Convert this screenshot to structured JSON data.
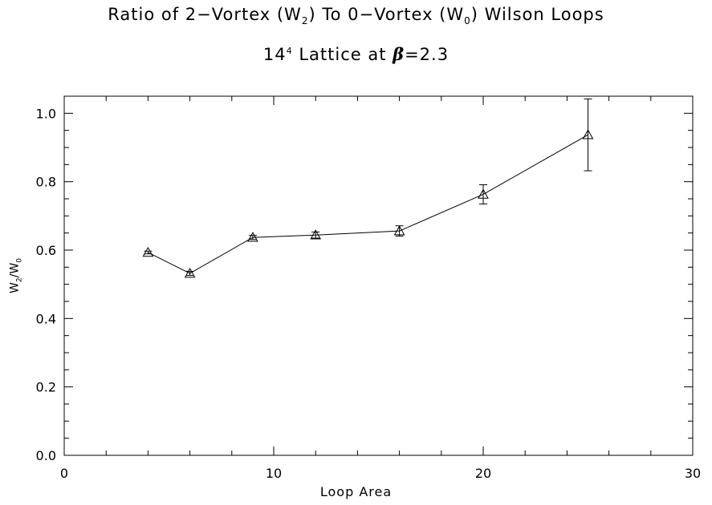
{
  "title": {
    "line1": {
      "prefix": "Ratio of 2−Vortex (W",
      "sub1": "2",
      "middle": ") To 0−Vortex (W",
      "sub2": "0",
      "suffix": ") Wilson Loops"
    },
    "line2": {
      "base": "14",
      "sup": "4",
      "text": " Lattice at ",
      "beta": "β",
      "value": "=2.3"
    }
  },
  "chart_data": {
    "type": "scatter",
    "xlabel": "Loop Area",
    "ylabel": {
      "w": "W",
      "sub1": "2",
      "sep": "/W",
      "sub2": "0"
    },
    "xlim": [
      0,
      30
    ],
    "ylim": [
      0.0,
      1.05
    ],
    "xticks": [
      0,
      10,
      20,
      30
    ],
    "yticks": [
      0.0,
      0.2,
      0.4,
      0.6,
      0.8,
      1.0
    ],
    "xtick_labels": [
      "0",
      "10",
      "20",
      "30"
    ],
    "ytick_labels": [
      "0.0",
      "0.2",
      "0.4",
      "0.6",
      "0.8",
      "1.0"
    ],
    "xminor": 2,
    "yminor": 0.05,
    "marker": "triangle",
    "connected": true,
    "color": "#000000",
    "points": [
      {
        "x": 4,
        "y": 0.593,
        "err": 0.004
      },
      {
        "x": 6,
        "y": 0.532,
        "err": 0.006
      },
      {
        "x": 9,
        "y": 0.637,
        "err": 0.006
      },
      {
        "x": 12,
        "y": 0.644,
        "err": 0.009
      },
      {
        "x": 16,
        "y": 0.656,
        "err": 0.015
      },
      {
        "x": 20,
        "y": 0.763,
        "err": 0.028
      },
      {
        "x": 25,
        "y": 0.937,
        "err": 0.105
      }
    ]
  }
}
